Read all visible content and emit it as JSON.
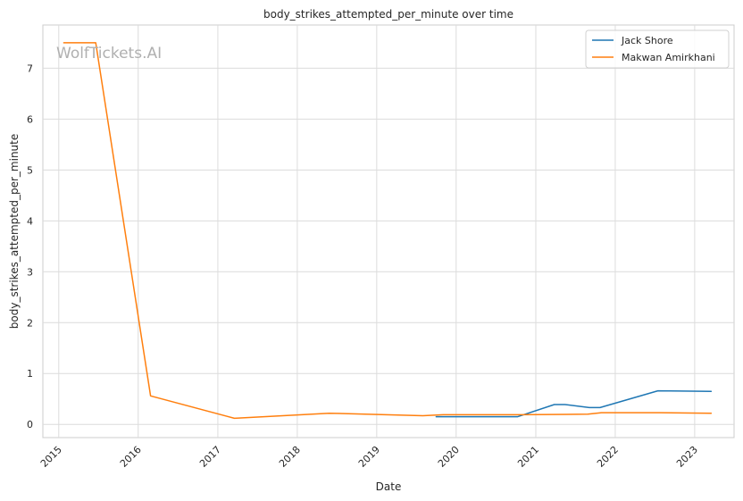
{
  "chart_data": {
    "type": "line",
    "title": "body_strikes_attempted_per_minute over time",
    "xlabel": "Date",
    "ylabel": "body_strikes_attempted_per_minute",
    "watermark": "WolfTickets.AI",
    "xlim": [
      "2014-10-20",
      "2023-07-01"
    ],
    "ylim": [
      -0.26,
      7.85
    ],
    "x_ticks": [
      "2015",
      "2016",
      "2017",
      "2018",
      "2019",
      "2020",
      "2021",
      "2022",
      "2023"
    ],
    "y_ticks": [
      "0",
      "1",
      "2",
      "3",
      "4",
      "5",
      "6",
      "7"
    ],
    "y_tick_values": [
      0,
      1,
      2,
      3,
      4,
      5,
      6,
      7
    ],
    "grid": true,
    "legend_position": "top-right",
    "colors": {
      "Jack Shore": "#1f77b4",
      "Makwan Amirkhani": "#ff7f0e"
    },
    "series": [
      {
        "name": "Jack Shore",
        "points": [
          {
            "x": "2019-10-01",
            "y": 0.15
          },
          {
            "x": "2020-10-10",
            "y": 0.15
          },
          {
            "x": "2021-03-27",
            "y": 0.39
          },
          {
            "x": "2021-05-15",
            "y": 0.39
          },
          {
            "x": "2021-09-04",
            "y": 0.33
          },
          {
            "x": "2021-10-23",
            "y": 0.33
          },
          {
            "x": "2022-07-16",
            "y": 0.66
          },
          {
            "x": "2023-03-18",
            "y": 0.65
          }
        ]
      },
      {
        "name": "Makwan Amirkhani",
        "points": [
          {
            "x": "2015-01-24",
            "y": 7.5
          },
          {
            "x": "2015-06-20",
            "y": 7.5
          },
          {
            "x": "2016-02-27",
            "y": 0.56
          },
          {
            "x": "2017-03-18",
            "y": 0.12
          },
          {
            "x": "2018-05-27",
            "y": 0.22
          },
          {
            "x": "2019-08-01",
            "y": 0.17
          },
          {
            "x": "2019-11-02",
            "y": 0.19
          },
          {
            "x": "2020-10-24",
            "y": 0.19
          },
          {
            "x": "2021-08-28",
            "y": 0.2
          },
          {
            "x": "2021-10-30",
            "y": 0.23
          },
          {
            "x": "2022-07-23",
            "y": 0.23
          },
          {
            "x": "2023-03-18",
            "y": 0.22
          }
        ]
      }
    ]
  }
}
